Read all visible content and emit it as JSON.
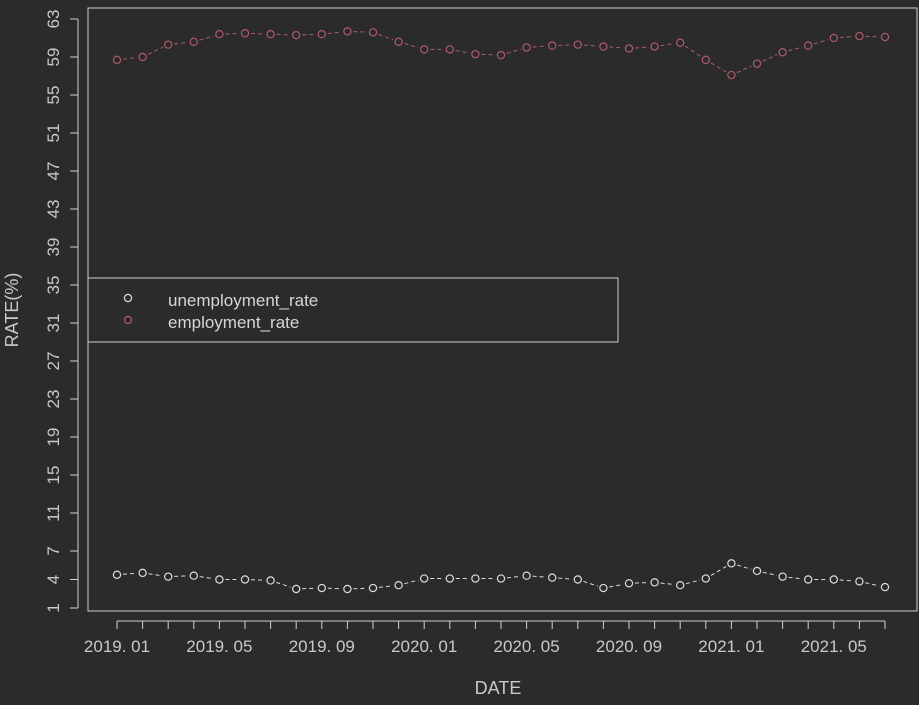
{
  "chart_data": {
    "type": "line",
    "xlabel": "DATE",
    "ylabel": "RATE(%)",
    "x": [
      "2019. 01",
      "2019. 02",
      "2019. 03",
      "2019. 04",
      "2019. 05",
      "2019. 06",
      "2019. 07",
      "2019. 08",
      "2019. 09",
      "2019. 10",
      "2019. 11",
      "2019. 12",
      "2020. 01",
      "2020. 02",
      "2020. 03",
      "2020. 04",
      "2020. 05",
      "2020. 06",
      "2020. 07",
      "2020. 08",
      "2020. 09",
      "2020. 10",
      "2020. 11",
      "2020. 12",
      "2021. 01",
      "2021. 02",
      "2021. 03",
      "2021. 04",
      "2021. 05",
      "2021. 06",
      "2021. 07"
    ],
    "x_tick_labels": [
      "2019. 01",
      "2019. 05",
      "2019. 09",
      "2020. 01",
      "2020. 05",
      "2020. 09",
      "2021. 01",
      "2021. 05"
    ],
    "ylim": [
      1,
      63
    ],
    "y_ticks": [
      1,
      4,
      7,
      11,
      15,
      19,
      23,
      27,
      31,
      35,
      39,
      43,
      47,
      51,
      55,
      59,
      63
    ],
    "grid": false,
    "legend_position": "left-middle",
    "series": [
      {
        "name": "unemployment_rate",
        "color": "#dcdcdc",
        "values": [
          4.5,
          4.7,
          4.3,
          4.4,
          4.0,
          4.0,
          3.9,
          3.0,
          3.1,
          3.0,
          3.1,
          3.4,
          4.1,
          4.1,
          4.1,
          4.1,
          4.4,
          4.2,
          4.0,
          3.1,
          3.6,
          3.7,
          3.4,
          4.1,
          5.7,
          4.9,
          4.3,
          4.0,
          4.0,
          3.8,
          3.2
        ]
      },
      {
        "name": "employment_rate",
        "color": "#b05a6a",
        "values": [
          58.7,
          59.0,
          60.3,
          60.6,
          61.4,
          61.5,
          61.4,
          61.3,
          61.4,
          61.7,
          61.6,
          60.6,
          59.8,
          59.8,
          59.3,
          59.2,
          60.0,
          60.2,
          60.3,
          60.1,
          59.9,
          60.1,
          60.5,
          58.7,
          57.1,
          58.3,
          59.5,
          60.2,
          61.0,
          61.2,
          61.1
        ]
      }
    ]
  }
}
